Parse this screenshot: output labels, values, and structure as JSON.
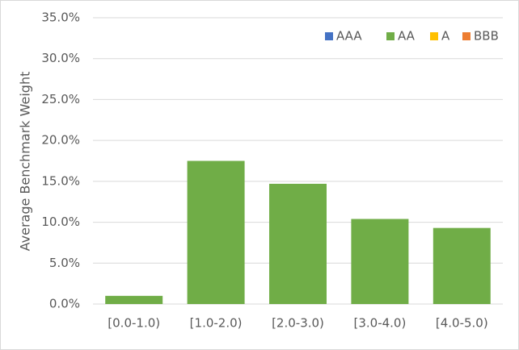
{
  "chart_data": {
    "type": "bar",
    "y_label": "Average Benchmark Weight",
    "categories": [
      "[0.0-1.0)",
      "[1.0-2.0)",
      "[2.0-3.0)",
      "[3.0-4.0)",
      "[4.0-5.0)"
    ],
    "series": [
      {
        "name": "AAA",
        "color": "#4472c4",
        "values": [
          null,
          null,
          null,
          null,
          null
        ]
      },
      {
        "name": "AA",
        "color": "#70ad47",
        "values": [
          1.0,
          17.5,
          14.7,
          10.4,
          9.3
        ]
      },
      {
        "name": "A",
        "color": "#ffc000",
        "values": [
          null,
          null,
          null,
          null,
          null
        ]
      },
      {
        "name": "BBB",
        "color": "#ed7d31",
        "values": [
          null,
          null,
          null,
          null,
          null
        ]
      }
    ],
    "ylim": [
      0,
      35
    ],
    "yticks": [
      {
        "value": 0,
        "label": "0.0%"
      },
      {
        "value": 5,
        "label": "5.0%"
      },
      {
        "value": 10,
        "label": "10.0%"
      },
      {
        "value": 15,
        "label": "15.0%"
      },
      {
        "value": 20,
        "label": "20.0%"
      },
      {
        "value": 25,
        "label": "25.0%"
      },
      {
        "value": 30,
        "label": "30.0%"
      },
      {
        "value": 35,
        "label": "35.0%"
      }
    ],
    "grid": true,
    "legend": "top-right"
  }
}
